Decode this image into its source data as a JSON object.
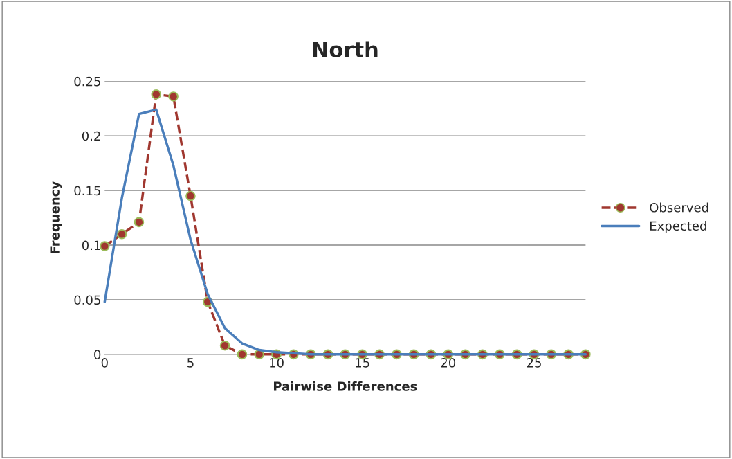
{
  "chart_data": {
    "type": "line",
    "title": "North",
    "xlabel": "Pairwise Differences",
    "ylabel": "Frequency",
    "x": [
      0,
      1,
      2,
      3,
      4,
      5,
      6,
      7,
      8,
      9,
      10,
      11,
      12,
      13,
      14,
      15,
      16,
      17,
      18,
      19,
      20,
      21,
      22,
      23,
      24,
      25,
      26,
      27,
      28
    ],
    "series": [
      {
        "name": "Observed",
        "color": "#a0372f",
        "marker": "circle",
        "line_style": "dashed",
        "values": [
          0.099,
          0.11,
          0.121,
          0.238,
          0.236,
          0.145,
          0.048,
          0.008,
          0,
          0,
          0,
          0,
          0,
          0,
          0,
          0,
          0,
          0,
          0,
          0,
          0,
          0,
          0,
          0,
          0,
          0,
          0,
          0,
          0
        ]
      },
      {
        "name": "Expected",
        "color": "#4a7ebb",
        "marker": "none",
        "line_style": "solid",
        "values": [
          0.048,
          0.143,
          0.22,
          0.224,
          0.173,
          0.105,
          0.055,
          0.024,
          0.01,
          0.004,
          0.002,
          0.001,
          0,
          0,
          0,
          0,
          0,
          0,
          0,
          0,
          0,
          0,
          0,
          0,
          0,
          0,
          0,
          0,
          0
        ]
      }
    ],
    "xlim": [
      0,
      28
    ],
    "xticks": [
      0,
      5,
      10,
      15,
      20,
      25
    ],
    "ylim": [
      0,
      0.25
    ],
    "yticks": [
      0,
      0.05,
      0.1,
      0.15,
      0.2,
      0.25
    ],
    "grid": "y",
    "legend": "right"
  }
}
